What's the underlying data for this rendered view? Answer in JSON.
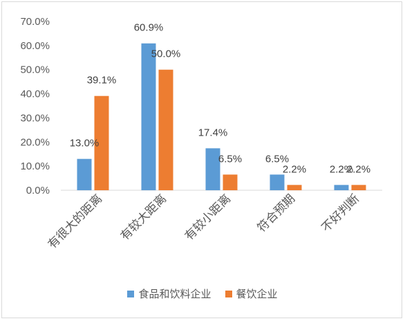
{
  "chart_data": {
    "type": "bar",
    "categories": [
      "有很大的距离",
      "有较大距离",
      "有较小距离",
      "符合预期",
      "不好判断"
    ],
    "series": [
      {
        "name": "食品和饮料企业",
        "color": "#5b9bd5",
        "values": [
          13.0,
          60.9,
          17.4,
          6.5,
          2.2
        ]
      },
      {
        "name": "餐饮企业",
        "color": "#ed7d31",
        "values": [
          39.1,
          50.0,
          6.5,
          2.2,
          2.2
        ]
      }
    ],
    "data_labels": [
      [
        "13.0%",
        "60.9%",
        "17.4%",
        "6.5%",
        "2.2%"
      ],
      [
        "39.1%",
        "50.0%",
        "6.5%",
        "2.2%",
        "2.2%"
      ]
    ],
    "y_ticks": [
      "0.0%",
      "10.0%",
      "20.0%",
      "30.0%",
      "40.0%",
      "50.0%",
      "60.0%",
      "70.0%"
    ],
    "ylim": [
      0,
      70
    ],
    "grid": false,
    "legend_position": "bottom"
  }
}
